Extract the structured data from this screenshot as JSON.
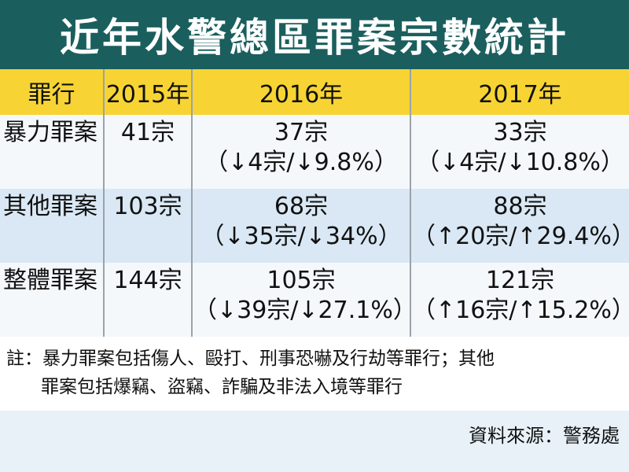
{
  "chart_data": {
    "type": "table",
    "title": "近年水警總區罪案宗數統計",
    "columns": [
      "罪行",
      "2015年",
      "2016年",
      "2017年"
    ],
    "rows": [
      {
        "category": "暴力罪案",
        "y2015": "41宗",
        "y2016": {
          "value": "37宗",
          "change": "（↓4宗/↓9.8%）"
        },
        "y2017": {
          "value": "33宗",
          "change": "（↓4宗/↓10.8%）"
        }
      },
      {
        "category": "其他罪案",
        "y2015": "103宗",
        "y2016": {
          "value": "68宗",
          "change": "（↓35宗/↓34%）"
        },
        "y2017": {
          "value": "88宗",
          "change": "（↑20宗/↑29.4%）"
        }
      },
      {
        "category": "整體罪案",
        "y2015": "144宗",
        "y2016": {
          "value": "105宗",
          "change": "（↓39宗/↓27.1%）"
        },
        "y2017": {
          "value": "121宗",
          "change": "（↑16宗/↑15.2%）"
        }
      }
    ],
    "values": {
      "2015": [
        41,
        103,
        144
      ],
      "2016": [
        37,
        68,
        105
      ],
      "2017": [
        33,
        88,
        121
      ]
    }
  },
  "note": {
    "line1": "註：暴力罪案包括傷人、毆打、刑事恐嚇及行劫等罪行；其他",
    "line2": "罪案包括爆竊、盜竊、詐騙及非法入境等罪行"
  },
  "source": "資料來源：警務處",
  "colors": {
    "title_bg": "#1b5e5e",
    "header_bg": "#f7d433",
    "row_dark": "#d9e8f4",
    "row_light": "#f4f8fb"
  }
}
